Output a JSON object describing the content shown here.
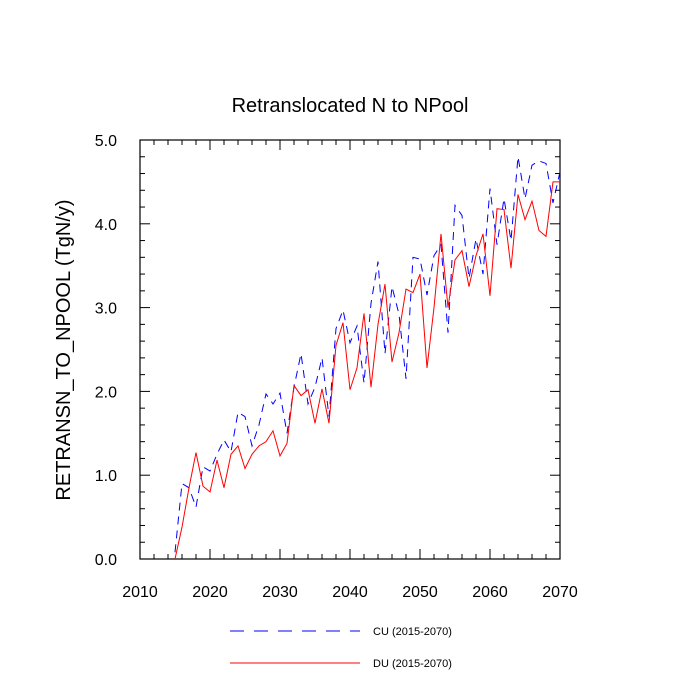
{
  "chart_data": {
    "type": "line",
    "title": "Retranslocated N to NPool",
    "xlabel": "",
    "ylabel": "RETRANSN_TO_NPOOL  (TgN/y)",
    "xlim": [
      2010,
      2070
    ],
    "ylim": [
      0.0,
      5.0
    ],
    "x_ticks": [
      2010,
      2020,
      2030,
      2040,
      2050,
      2060,
      2070
    ],
    "x_tick_labels": [
      "2010",
      "2020",
      "2030",
      "2040",
      "2050",
      "2060",
      "2070"
    ],
    "y_ticks": [
      0.0,
      1.0,
      2.0,
      3.0,
      4.0,
      5.0
    ],
    "y_tick_labels": [
      "0.0",
      "1.0",
      "2.0",
      "3.0",
      "4.0",
      "5.0"
    ],
    "grid": false,
    "legend_position": "bottom",
    "x": [
      2015,
      2016,
      2017,
      2018,
      2019,
      2020,
      2021,
      2022,
      2023,
      2024,
      2025,
      2026,
      2027,
      2028,
      2029,
      2030,
      2031,
      2032,
      2033,
      2034,
      2035,
      2036,
      2037,
      2038,
      2039,
      2040,
      2041,
      2042,
      2043,
      2044,
      2045,
      2046,
      2047,
      2048,
      2049,
      2050,
      2051,
      2052,
      2053,
      2054,
      2055,
      2056,
      2057,
      2058,
      2059,
      2060,
      2061,
      2062,
      2063,
      2064,
      2065,
      2066,
      2067,
      2068,
      2069,
      2070
    ],
    "series": [
      {
        "name": "CU (2015-2070)",
        "color": "#0000ff",
        "style": "dashed",
        "values": [
          0.08,
          0.9,
          0.85,
          0.62,
          1.1,
          1.05,
          1.25,
          1.42,
          1.28,
          1.75,
          1.7,
          1.35,
          1.6,
          1.97,
          1.85,
          1.98,
          1.5,
          2.05,
          2.45,
          1.85,
          2.05,
          2.4,
          1.7,
          2.75,
          2.97,
          2.58,
          2.78,
          2.1,
          3.05,
          3.55,
          2.45,
          3.25,
          2.92,
          2.15,
          3.6,
          3.58,
          3.15,
          3.62,
          3.75,
          2.7,
          4.22,
          4.1,
          3.35,
          3.82,
          3.4,
          4.42,
          3.75,
          4.3,
          3.8,
          4.8,
          4.3,
          4.7,
          4.75,
          4.72,
          4.25,
          4.62
        ]
      },
      {
        "name": "DU (2015-2070)",
        "color": "#ff0000",
        "style": "solid",
        "values": [
          0.0,
          0.38,
          0.85,
          1.27,
          0.87,
          0.8,
          1.18,
          0.85,
          1.25,
          1.35,
          1.08,
          1.25,
          1.35,
          1.4,
          1.53,
          1.23,
          1.38,
          2.07,
          1.95,
          2.02,
          1.62,
          2.03,
          1.62,
          2.55,
          2.82,
          2.02,
          2.28,
          2.93,
          2.05,
          2.8,
          3.28,
          2.35,
          2.7,
          3.22,
          3.18,
          3.4,
          2.28,
          3.0,
          3.88,
          3.0,
          3.57,
          3.68,
          3.25,
          3.62,
          3.88,
          3.14,
          4.18,
          4.17,
          3.47,
          4.35,
          4.05,
          4.27,
          3.92,
          3.85,
          4.5,
          4.5
        ]
      }
    ]
  }
}
